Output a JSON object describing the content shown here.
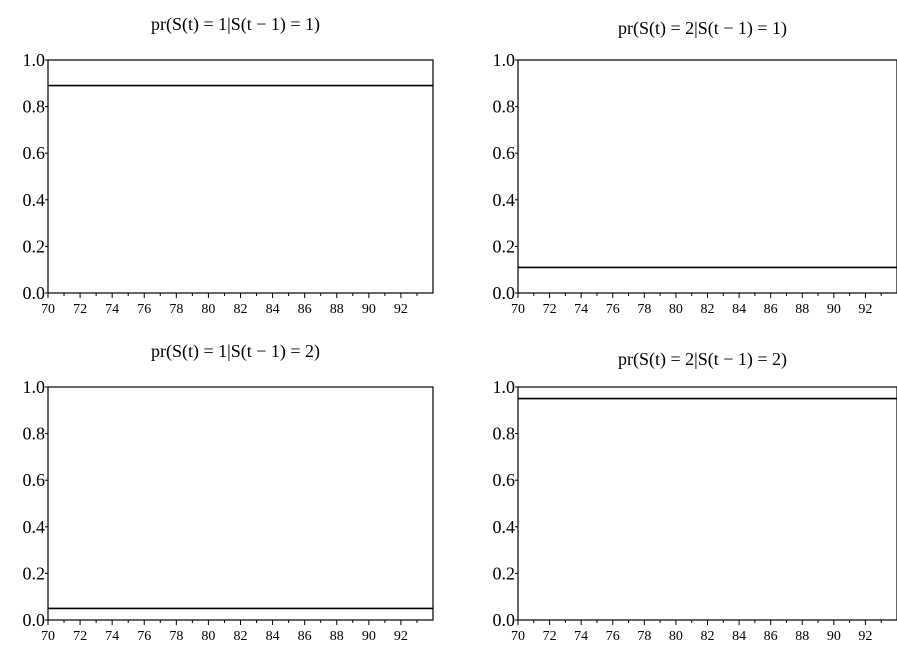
{
  "chart_data": [
    {
      "type": "line",
      "title": "pr(S(t) = 1|S(t − 1) = 1)",
      "xlabel": "",
      "ylabel": "",
      "xlim": [
        70,
        94
      ],
      "ylim": [
        0,
        1
      ],
      "x_ticks": [
        "70",
        "72",
        "74",
        "76",
        "78",
        "80",
        "82",
        "84",
        "86",
        "88",
        "90",
        "92"
      ],
      "y_ticks": [
        "0.0",
        "0.2",
        "0.4",
        "0.6",
        "0.8",
        "1.0"
      ],
      "series": [
        {
          "x": [
            70,
            94
          ],
          "values": [
            0.89,
            0.89
          ]
        }
      ]
    },
    {
      "type": "line",
      "title": "pr(S(t) = 2|S(t − 1) = 1)",
      "xlabel": "",
      "ylabel": "",
      "xlim": [
        70,
        94
      ],
      "ylim": [
        0,
        1
      ],
      "x_ticks": [
        "70",
        "72",
        "74",
        "76",
        "78",
        "80",
        "82",
        "84",
        "86",
        "88",
        "90",
        "92"
      ],
      "y_ticks": [
        "0.0",
        "0.2",
        "0.4",
        "0.6",
        "0.8",
        "1.0"
      ],
      "series": [
        {
          "x": [
            70,
            94
          ],
          "values": [
            0.11,
            0.11
          ]
        }
      ]
    },
    {
      "type": "line",
      "title": "pr(S(t) = 1|S(t − 1) = 2)",
      "xlabel": "",
      "ylabel": "",
      "xlim": [
        70,
        94
      ],
      "ylim": [
        0,
        1
      ],
      "x_ticks": [
        "70",
        "72",
        "74",
        "76",
        "78",
        "80",
        "82",
        "84",
        "86",
        "88",
        "90",
        "92"
      ],
      "y_ticks": [
        "0.0",
        "0.2",
        "0.4",
        "0.6",
        "0.8",
        "1.0"
      ],
      "series": [
        {
          "x": [
            70,
            94
          ],
          "values": [
            0.05,
            0.05
          ]
        }
      ]
    },
    {
      "type": "line",
      "title": "pr(S(t) = 2|S(t − 1) = 2)",
      "xlabel": "",
      "ylabel": "",
      "xlim": [
        70,
        94
      ],
      "ylim": [
        0,
        1
      ],
      "x_ticks": [
        "70",
        "72",
        "74",
        "76",
        "78",
        "80",
        "82",
        "84",
        "86",
        "88",
        "90",
        "92"
      ],
      "y_ticks": [
        "0.0",
        "0.2",
        "0.4",
        "0.6",
        "0.8",
        "1.0"
      ],
      "series": [
        {
          "x": [
            70,
            94
          ],
          "values": [
            0.95,
            0.95
          ]
        }
      ]
    }
  ]
}
